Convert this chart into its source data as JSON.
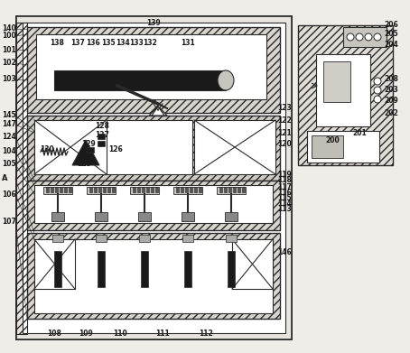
{
  "bg_color": "#f0ede8",
  "line_color": "#2a2a2a",
  "hatch_color": "#2a2a2a",
  "figsize": [
    4.54,
    3.91
  ],
  "dpi": 100
}
